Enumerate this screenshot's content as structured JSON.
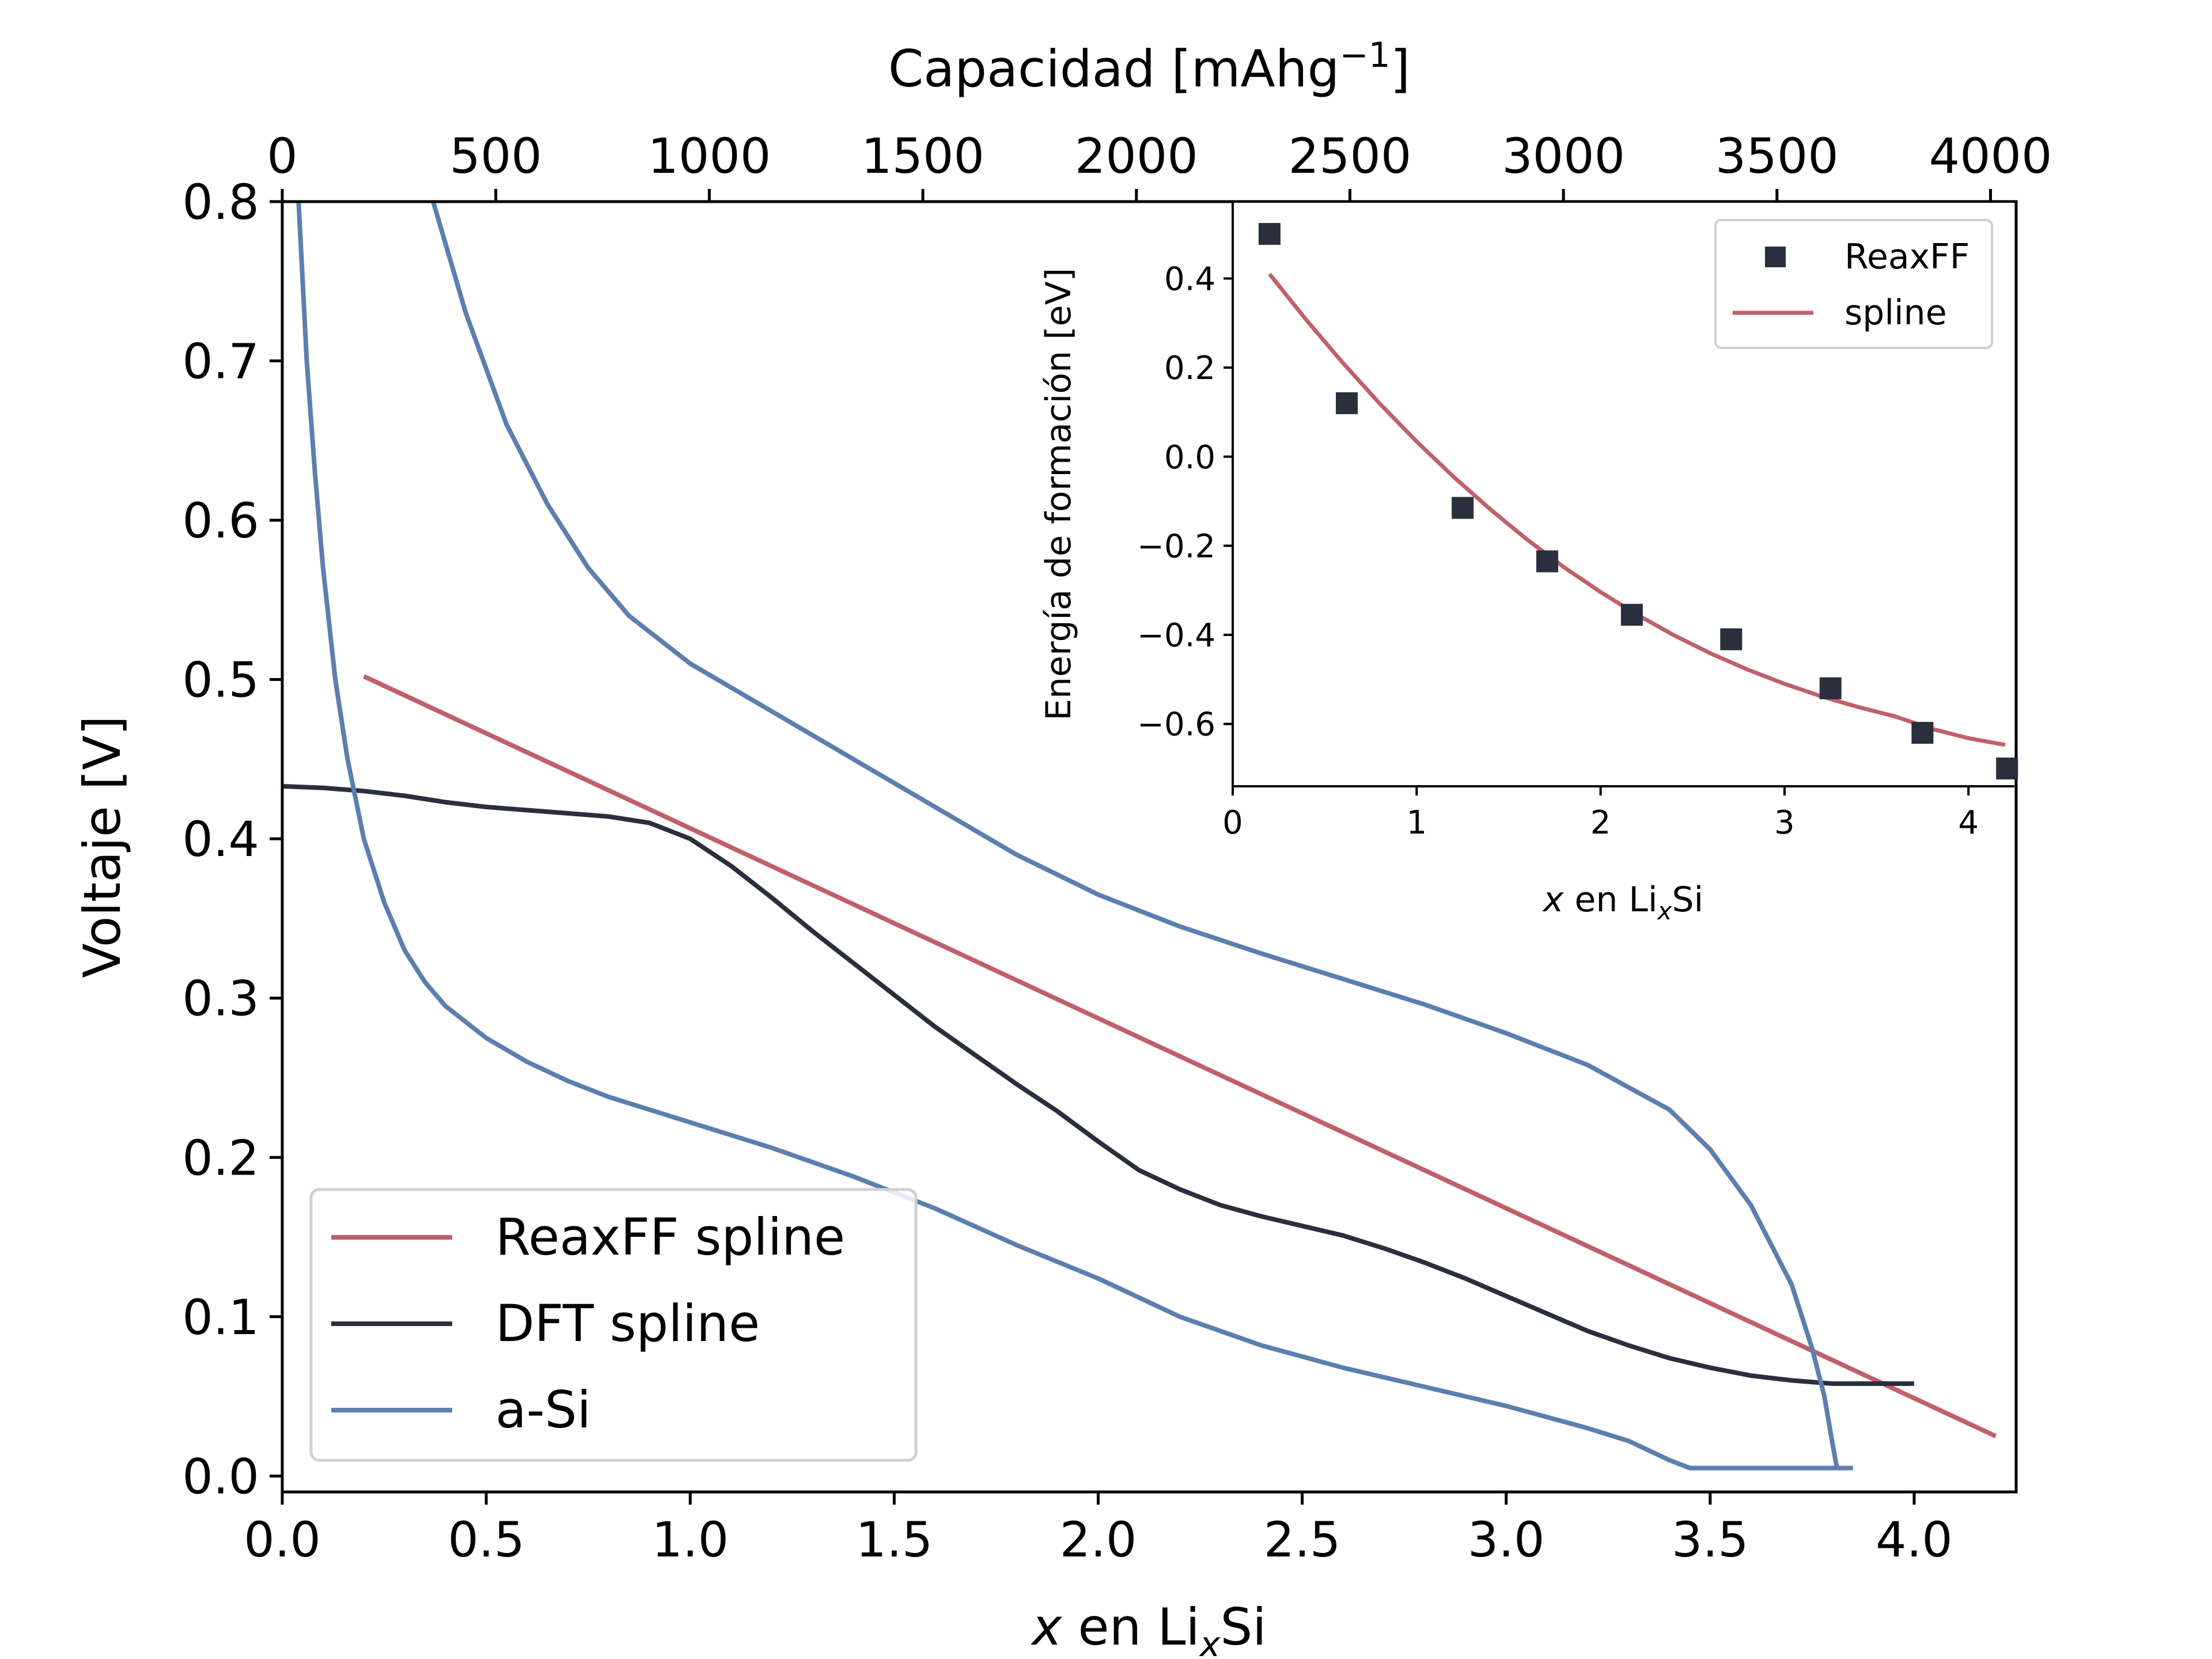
{
  "chart_data": [
    {
      "type": "line",
      "xlabel": "x en LixSi",
      "xlabel_parts": {
        "italic": "x",
        "text": " en Li",
        "sub": "x",
        "tail": "Si"
      },
      "ylabel": "Voltaje [V]",
      "top_xlabel": "Capacidad [mAhg−1]",
      "top_xlabel_parts": {
        "text": "Capacidad [mAhg",
        "sup": "−1",
        "tail": "]"
      },
      "xlim": [
        0.0,
        4.25
      ],
      "ylim": [
        -0.01,
        0.8
      ],
      "xticks": [
        0.0,
        0.5,
        1.0,
        1.5,
        2.0,
        2.5,
        3.0,
        3.5,
        4.0
      ],
      "xtick_labels": [
        "0.0",
        "0.5",
        "1.0",
        "1.5",
        "2.0",
        "2.5",
        "3.0",
        "3.5",
        "4.0"
      ],
      "yticks": [
        0.0,
        0.1,
        0.2,
        0.3,
        0.4,
        0.5,
        0.6,
        0.7,
        0.8
      ],
      "ytick_labels": [
        "0.0",
        "0.1",
        "0.2",
        "0.3",
        "0.4",
        "0.5",
        "0.6",
        "0.7",
        "0.8"
      ],
      "top_xlim": [
        0,
        4060
      ],
      "top_xticks": [
        0,
        500,
        1000,
        1500,
        2000,
        2500,
        3000,
        3500,
        4000
      ],
      "top_xtick_labels": [
        "0",
        "500",
        "1000",
        "1500",
        "2000",
        "2500",
        "3000",
        "3500",
        "4000"
      ],
      "legend": {
        "position": "lower-left",
        "entries": [
          "ReaxFF spline",
          "DFT spline",
          "a-Si"
        ]
      },
      "grid": false,
      "series": [
        {
          "name": "ReaxFF spline",
          "color": "#c0606b",
          "x": [
            0.2,
            4.2
          ],
          "y": [
            0.502,
            0.025
          ]
        },
        {
          "name": "DFT spline",
          "color": "#2a2f3d",
          "x": [
            0.0,
            0.1,
            0.2,
            0.3,
            0.4,
            0.5,
            0.6,
            0.7,
            0.8,
            0.9,
            1.0,
            1.1,
            1.2,
            1.3,
            1.4,
            1.5,
            1.6,
            1.7,
            1.8,
            1.9,
            2.0,
            2.1,
            2.2,
            2.3,
            2.4,
            2.5,
            2.6,
            2.7,
            2.8,
            2.9,
            3.0,
            3.1,
            3.2,
            3.3,
            3.4,
            3.5,
            3.6,
            3.7,
            3.8,
            3.9,
            4.0
          ],
          "y": [
            0.433,
            0.432,
            0.43,
            0.427,
            0.423,
            0.42,
            0.418,
            0.416,
            0.414,
            0.41,
            0.4,
            0.383,
            0.363,
            0.342,
            0.322,
            0.302,
            0.282,
            0.264,
            0.246,
            0.229,
            0.21,
            0.192,
            0.18,
            0.17,
            0.163,
            0.157,
            0.151,
            0.143,
            0.134,
            0.124,
            0.113,
            0.102,
            0.091,
            0.082,
            0.074,
            0.068,
            0.063,
            0.06,
            0.058,
            0.058,
            0.058
          ]
        },
        {
          "name": "a-Si",
          "color": "#5b7fae",
          "x": [
            0.04,
            0.05,
            0.06,
            0.08,
            0.1,
            0.13,
            0.16,
            0.2,
            0.25,
            0.3,
            0.35,
            0.4,
            0.5,
            0.6,
            0.7,
            0.8,
            0.9,
            1.0,
            1.2,
            1.4,
            1.6,
            1.8,
            2.0,
            2.2,
            2.4,
            2.6,
            2.8,
            3.0,
            3.2,
            3.3,
            3.4,
            3.45,
            3.5,
            3.6,
            3.7,
            3.85
          ],
          "y": [
            0.8,
            0.75,
            0.7,
            0.63,
            0.57,
            0.5,
            0.45,
            0.4,
            0.36,
            0.33,
            0.31,
            0.295,
            0.275,
            0.26,
            0.248,
            0.238,
            0.23,
            0.222,
            0.206,
            0.188,
            0.168,
            0.145,
            0.124,
            0.1,
            0.082,
            0.068,
            0.056,
            0.044,
            0.03,
            0.022,
            0.01,
            0.005,
            0.005,
            0.005,
            0.005,
            0.005
          ],
          "x2": [
            0.37,
            0.45,
            0.55,
            0.65,
            0.75,
            0.85,
            1.0,
            1.2,
            1.4,
            1.6,
            1.8,
            2.0,
            2.2,
            2.4,
            2.6,
            2.8,
            3.0,
            3.2,
            3.4,
            3.5,
            3.6,
            3.7,
            3.75,
            3.78,
            3.8,
            3.81,
            3.81
          ],
          "y2": [
            0.8,
            0.73,
            0.66,
            0.61,
            0.57,
            0.54,
            0.51,
            0.48,
            0.45,
            0.42,
            0.39,
            0.365,
            0.345,
            0.328,
            0.312,
            0.296,
            0.278,
            0.258,
            0.23,
            0.205,
            0.17,
            0.12,
            0.08,
            0.05,
            0.02,
            0.006,
            0.005
          ]
        }
      ]
    },
    {
      "type": "scatter",
      "role": "inset",
      "xlabel": "x en LixSi",
      "xlabel_parts": {
        "italic": "x",
        "text": " en Li",
        "sub": "x",
        "tail": "Si"
      },
      "ylabel": "Energía de formación [eV]",
      "xlim": [
        0.0,
        4.25
      ],
      "ylim": [
        -0.74,
        0.57
      ],
      "xticks": [
        0,
        1,
        2,
        3,
        4
      ],
      "xtick_labels": [
        "0",
        "1",
        "2",
        "3",
        "4"
      ],
      "yticks": [
        0.4,
        0.2,
        0.0,
        -0.2,
        -0.4,
        -0.6
      ],
      "ytick_labels": [
        "0.4",
        "0.2",
        "0.0",
        "−0.2",
        "−0.4",
        "−0.6"
      ],
      "legend": {
        "position": "top-right",
        "entries": [
          "ReaxFF",
          "spline"
        ]
      },
      "grid": false,
      "series": [
        {
          "name": "ReaxFF",
          "kind": "scatter",
          "marker": "square",
          "color": "#2a2f3d",
          "x": [
            0.2,
            0.62,
            1.25,
            1.71,
            2.17,
            2.71,
            3.25,
            3.75,
            4.21
          ],
          "y": [
            0.5,
            0.12,
            -0.115,
            -0.235,
            -0.355,
            -0.41,
            -0.52,
            -0.62,
            -0.7
          ]
        },
        {
          "name": "spline",
          "kind": "line",
          "color": "#c0606b",
          "x": [
            0.2,
            0.4,
            0.6,
            0.8,
            1.0,
            1.2,
            1.4,
            1.6,
            1.8,
            2.0,
            2.2,
            2.4,
            2.6,
            2.8,
            3.0,
            3.2,
            3.4,
            3.6,
            3.8,
            4.0,
            4.2
          ],
          "y": [
            0.41,
            0.307,
            0.21,
            0.119,
            0.034,
            -0.045,
            -0.118,
            -0.186,
            -0.248,
            -0.304,
            -0.355,
            -0.401,
            -0.442,
            -0.478,
            -0.51,
            -0.538,
            -0.562,
            -0.583,
            -0.611,
            -0.632,
            -0.647
          ]
        }
      ]
    }
  ]
}
